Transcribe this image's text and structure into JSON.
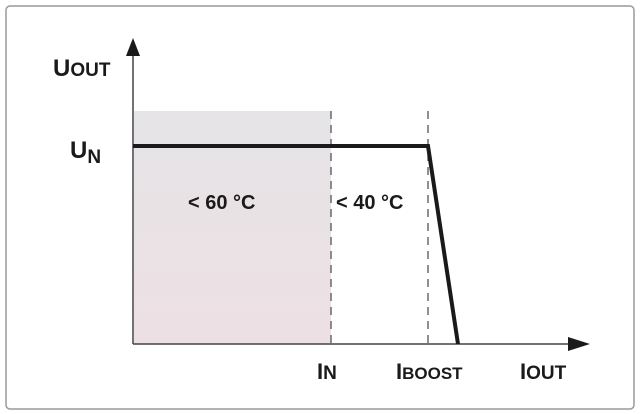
{
  "diagram": {
    "y_axis": {
      "main": "U",
      "sub": "OUT"
    },
    "x_axis": {
      "main": "I",
      "sub": "OUT"
    },
    "un_label": {
      "main": "U",
      "sub": "N"
    },
    "in_label": {
      "main": "I",
      "sub": "N"
    },
    "iboost_label": {
      "main": "I",
      "sub": "BOOST"
    },
    "region_1_label": "< 60 °C",
    "region_2_label": "< 40 °C",
    "colors": {
      "shade_top": "#e5e4e6",
      "shade_bottom": "#ede0e4",
      "line": "#1a1a1a",
      "frame": "#9a9a9a"
    }
  }
}
